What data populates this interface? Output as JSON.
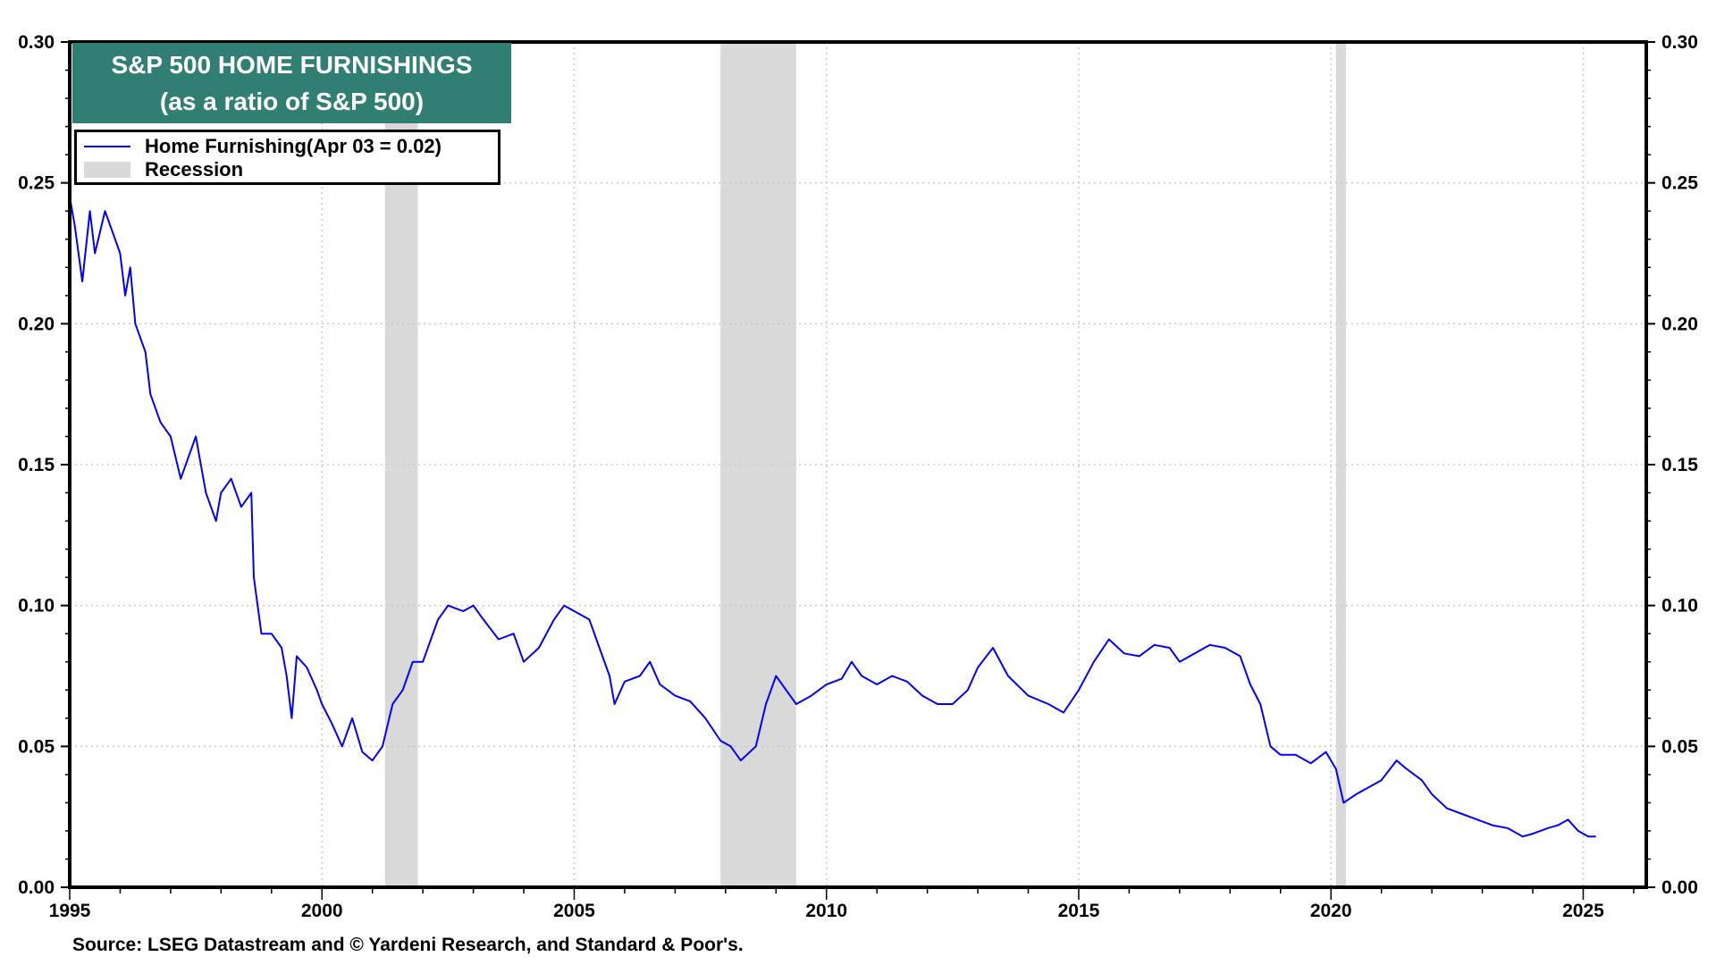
{
  "chart_data": {
    "type": "line",
    "title": "S&P 500 HOME FURNISHINGS",
    "subtitle": "(as a ratio of S&P 500)",
    "xlabel": "",
    "ylabel": "",
    "xlim": [
      1995,
      2026.25
    ],
    "ylim": [
      0,
      0.3
    ],
    "x_ticks": [
      "1995",
      "2000",
      "2005",
      "2010",
      "2015",
      "2020",
      "2025"
    ],
    "y_ticks": [
      "0.00",
      "0.05",
      "0.10",
      "0.15",
      "0.20",
      "0.25",
      "0.30"
    ],
    "grid": true,
    "legend_placement": "top-left",
    "series": [
      {
        "name": "Home Furnishing(Apr 03 = 0.02)",
        "color": "#0000ff",
        "x": [
          1995.0,
          1995.1,
          1995.25,
          1995.4,
          1995.5,
          1995.7,
          1995.9,
          1996.0,
          1996.1,
          1996.2,
          1996.3,
          1996.5,
          1996.6,
          1996.8,
          1997.0,
          1997.2,
          1997.4,
          1997.5,
          1997.7,
          1997.9,
          1998.0,
          1998.2,
          1998.4,
          1998.6,
          1998.65,
          1998.8,
          1999.0,
          1999.2,
          1999.3,
          1999.4,
          1999.5,
          1999.7,
          1999.9,
          2000.0,
          2000.2,
          2000.4,
          2000.6,
          2000.8,
          2001.0,
          2001.2,
          2001.4,
          2001.6,
          2001.8,
          2002.0,
          2002.3,
          2002.5,
          2002.8,
          2003.0,
          2003.2,
          2003.5,
          2003.8,
          2004.0,
          2004.3,
          2004.6,
          2004.8,
          2005.0,
          2005.3,
          2005.5,
          2005.7,
          2005.8,
          2006.0,
          2006.3,
          2006.5,
          2006.7,
          2007.0,
          2007.3,
          2007.6,
          2007.9,
          2008.1,
          2008.3,
          2008.6,
          2008.8,
          2009.0,
          2009.2,
          2009.4,
          2009.7,
          2010.0,
          2010.3,
          2010.5,
          2010.7,
          2011.0,
          2011.3,
          2011.6,
          2011.9,
          2012.2,
          2012.5,
          2012.8,
          2013.0,
          2013.3,
          2013.6,
          2014.0,
          2014.4,
          2014.7,
          2015.0,
          2015.3,
          2015.6,
          2015.9,
          2016.2,
          2016.5,
          2016.8,
          2017.0,
          2017.3,
          2017.6,
          2017.9,
          2018.2,
          2018.4,
          2018.6,
          2018.8,
          2019.0,
          2019.3,
          2019.6,
          2019.9,
          2020.1,
          2020.25,
          2020.5,
          2020.8,
          2021.0,
          2021.3,
          2021.5,
          2021.8,
          2022.0,
          2022.3,
          2022.6,
          2022.9,
          2023.2,
          2023.5,
          2023.8,
          2024.0,
          2024.3,
          2024.5,
          2024.7,
          2024.9,
          2025.1,
          2025.25
        ],
        "values": [
          0.245,
          0.235,
          0.215,
          0.24,
          0.225,
          0.24,
          0.23,
          0.225,
          0.21,
          0.22,
          0.2,
          0.19,
          0.175,
          0.165,
          0.16,
          0.145,
          0.155,
          0.16,
          0.14,
          0.13,
          0.14,
          0.145,
          0.135,
          0.14,
          0.11,
          0.09,
          0.09,
          0.085,
          0.075,
          0.06,
          0.082,
          0.078,
          0.07,
          0.065,
          0.058,
          0.05,
          0.06,
          0.048,
          0.045,
          0.05,
          0.065,
          0.07,
          0.08,
          0.08,
          0.095,
          0.1,
          0.098,
          0.1,
          0.095,
          0.088,
          0.09,
          0.08,
          0.085,
          0.095,
          0.1,
          0.098,
          0.095,
          0.085,
          0.075,
          0.065,
          0.073,
          0.075,
          0.08,
          0.072,
          0.068,
          0.066,
          0.06,
          0.052,
          0.05,
          0.045,
          0.05,
          0.065,
          0.075,
          0.07,
          0.065,
          0.068,
          0.072,
          0.074,
          0.08,
          0.075,
          0.072,
          0.075,
          0.073,
          0.068,
          0.065,
          0.065,
          0.07,
          0.078,
          0.085,
          0.075,
          0.068,
          0.065,
          0.062,
          0.07,
          0.08,
          0.088,
          0.083,
          0.082,
          0.086,
          0.085,
          0.08,
          0.083,
          0.086,
          0.085,
          0.082,
          0.072,
          0.065,
          0.05,
          0.047,
          0.047,
          0.044,
          0.048,
          0.042,
          0.03,
          0.033,
          0.036,
          0.038,
          0.045,
          0.042,
          0.038,
          0.033,
          0.028,
          0.026,
          0.024,
          0.022,
          0.021,
          0.018,
          0.019,
          0.021,
          0.022,
          0.024,
          0.02,
          0.018,
          0.018
        ]
      }
    ],
    "recessions": {
      "name": "Recession",
      "color": "#d9d9d9",
      "periods": [
        [
          2001.25,
          2001.9
        ],
        [
          2007.9,
          2009.4
        ],
        [
          2020.1,
          2020.3
        ]
      ]
    },
    "source": "Source: LSEG Datastream and © Yardeni Research, and Standard & Poor's."
  }
}
